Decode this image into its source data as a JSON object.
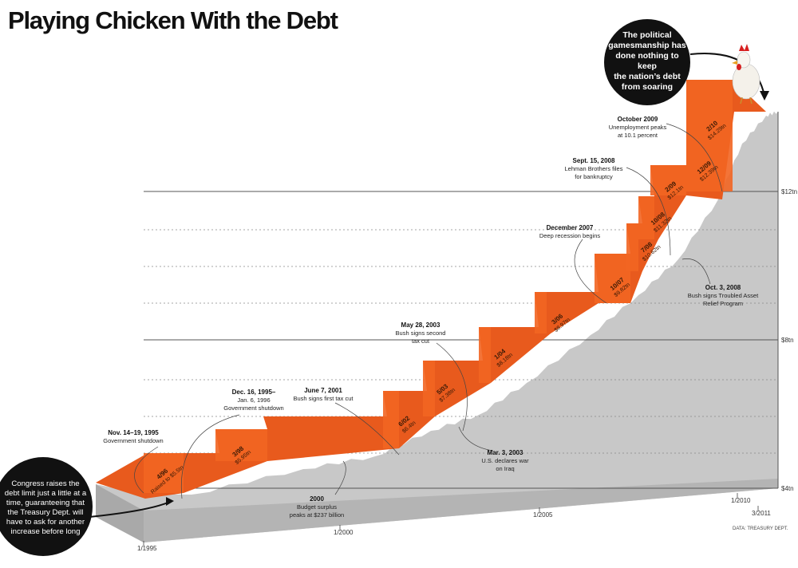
{
  "title": "Playing Chicken With the Debt",
  "source": "DATA: TREASURY DEPT.",
  "bubbles": {
    "top": [
      "The political",
      "gamesmanship has",
      "done nothing to keep",
      "the nation’s debt",
      "from soaring"
    ],
    "left": [
      "Congress raises the",
      "debt limit just a little at a",
      "time, guaranteeing that",
      "the Treasury Dept. will",
      "have to ask for another",
      "increase before long"
    ]
  },
  "colors": {
    "step": "#f26522",
    "wall": "#c8c8c8",
    "bubble": "#111111"
  },
  "chart_data": {
    "type": "area",
    "title": "Playing Chicken With the Debt",
    "y_ticks": [
      "$4tn",
      "$8tn",
      "$12tn"
    ],
    "x_ticks": [
      "1/1995",
      "1/2000",
      "1/2005",
      "1/2010",
      "3/2011"
    ],
    "ylim": [
      4,
      14.5
    ],
    "debt_limit_steps": [
      {
        "date": "4/96",
        "label": "Raised to $5.5tn",
        "value": 5.5
      },
      {
        "date": "3/98",
        "label": "$5.95tn",
        "value": 5.95
      },
      {
        "date": "6/02",
        "label": "$6.4tn",
        "value": 6.4
      },
      {
        "date": "5/03",
        "label": "$7.38tn",
        "value": 7.38
      },
      {
        "date": "1/04",
        "label": "$8.18tn",
        "value": 8.18
      },
      {
        "date": "3/06",
        "label": "$8.97tn",
        "value": 8.97
      },
      {
        "date": "10/07",
        "label": "$9.82tn",
        "value": 9.82
      },
      {
        "date": "7/08",
        "label": "$10.62tn",
        "value": 10.62
      },
      {
        "date": "10/08",
        "label": "$11.32tn",
        "value": 11.32
      },
      {
        "date": "2/09",
        "label": "$12.1tn",
        "value": 12.1
      },
      {
        "date": "12/09",
        "label": "$12.39tn",
        "value": 12.39
      },
      {
        "date": "2/10",
        "label": "$14.29tn",
        "value": 14.29
      }
    ],
    "annotations": [
      {
        "head": "Nov. 14–19, 1995",
        "lines": [
          "Government shutdown"
        ]
      },
      {
        "head": "Dec. 16, 1995–",
        "lines": [
          "Jan. 6, 1996",
          "Government shutdown"
        ]
      },
      {
        "head": "June 7, 2001",
        "lines": [
          "Bush signs first tax cut"
        ]
      },
      {
        "head": "2000",
        "lines": [
          "Budget surplus",
          "peaks at $237 billion"
        ]
      },
      {
        "head": "May 28, 2003",
        "lines": [
          "Bush signs second",
          "tax cut"
        ]
      },
      {
        "head": "Mar. 3, 2003",
        "lines": [
          "U.S. declares war",
          "on Iraq"
        ]
      },
      {
        "head": "December 2007",
        "lines": [
          "Deep recession begins"
        ]
      },
      {
        "head": "Sept. 15, 2008",
        "lines": [
          "Lehman Brothers files",
          "for bankruptcy"
        ]
      },
      {
        "head": "October 2009",
        "lines": [
          "Unemployment peaks",
          "at 10.1 percent"
        ]
      },
      {
        "head": "Oct. 3, 2008",
        "lines": [
          "Bush signs Troubled Asset",
          "Relief Program"
        ]
      }
    ]
  }
}
